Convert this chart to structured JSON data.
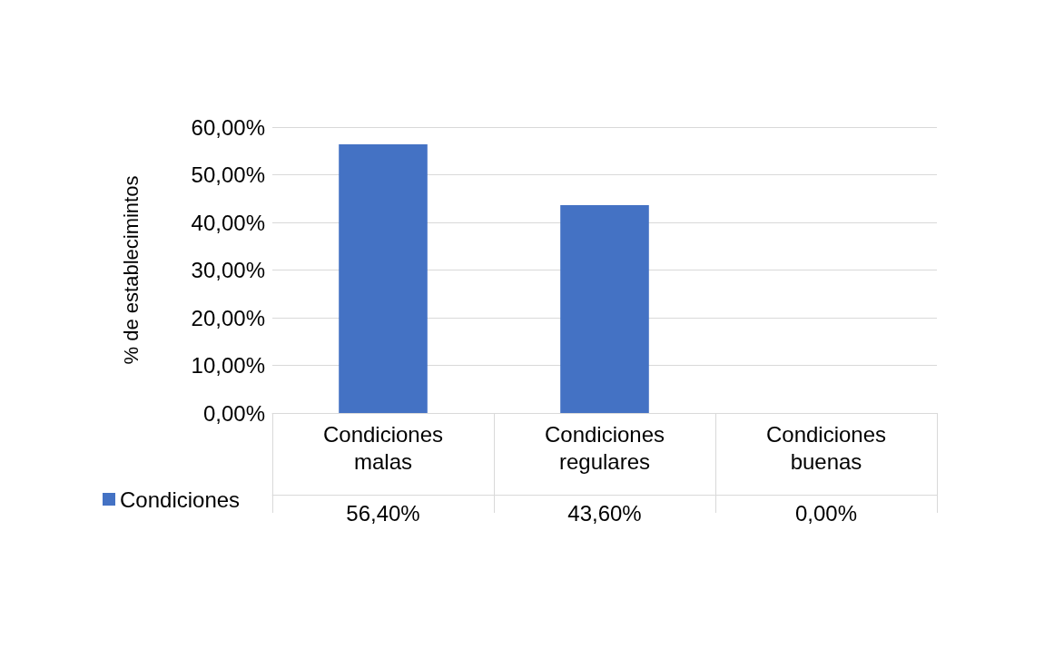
{
  "chart_data": {
    "type": "bar",
    "ylabel": "% de establecimintos",
    "categories": [
      "Condiciones\nmalas",
      "Condiciones\nregulares",
      "Condiciones\nbuenas"
    ],
    "series": [
      {
        "name": "Condiciones",
        "color": "#4472c4",
        "values": [
          56.4,
          43.6,
          0
        ],
        "value_labels": [
          "56,40%",
          "43,60%",
          "0,00%"
        ]
      }
    ],
    "ylim": [
      0,
      60
    ],
    "yticks": [
      {
        "value": 0,
        "label": "0,00%"
      },
      {
        "value": 10,
        "label": "10,00%"
      },
      {
        "value": 20,
        "label": "20,00%"
      },
      {
        "value": 30,
        "label": "30,00%"
      },
      {
        "value": 40,
        "label": "40,00%"
      },
      {
        "value": 50,
        "label": "50,00%"
      },
      {
        "value": 60,
        "label": "60,00%"
      }
    ],
    "grid": "y",
    "legend": "bottom left"
  }
}
